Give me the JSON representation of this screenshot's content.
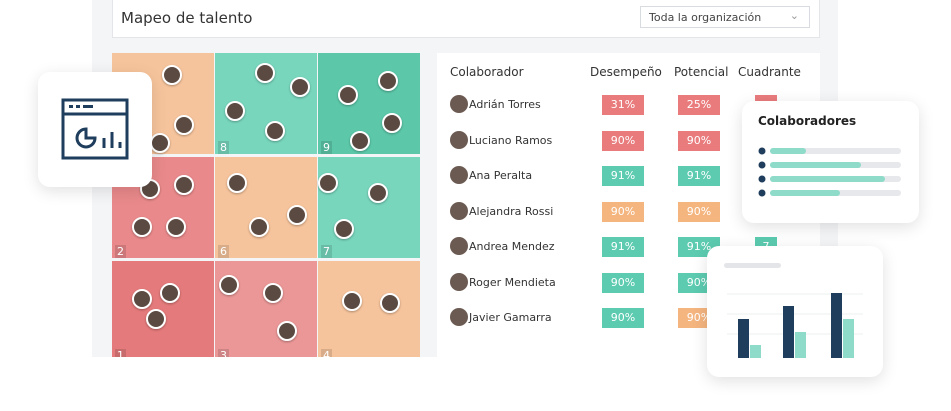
{
  "header": {
    "title": "Mapeo de talento",
    "filter": "Toda la organización"
  },
  "grid": {
    "cells": [
      null,
      "8",
      "9",
      "2",
      "6",
      "7",
      "1",
      "3",
      "4"
    ]
  },
  "table": {
    "columns": [
      "Colaborador",
      "Desempeño",
      "Potencial",
      "Cuadrante"
    ],
    "rows": [
      [
        "Adrián Torres",
        "31%",
        "25%",
        null
      ],
      [
        "Luciano Ramos",
        "90%",
        "90%",
        null
      ],
      [
        "Ana Peralta",
        "91%",
        "91%",
        null
      ],
      [
        "Alejandra Rossi",
        "90%",
        "90%",
        null
      ],
      [
        "Andrea Mendez",
        "91%",
        "91%",
        "7"
      ],
      [
        "Roger Mendieta",
        "90%",
        "90%",
        null
      ],
      [
        "Javier Gamarra",
        "90%",
        "90%",
        null
      ]
    ]
  },
  "card": {
    "title": "Colaboradores"
  }
}
